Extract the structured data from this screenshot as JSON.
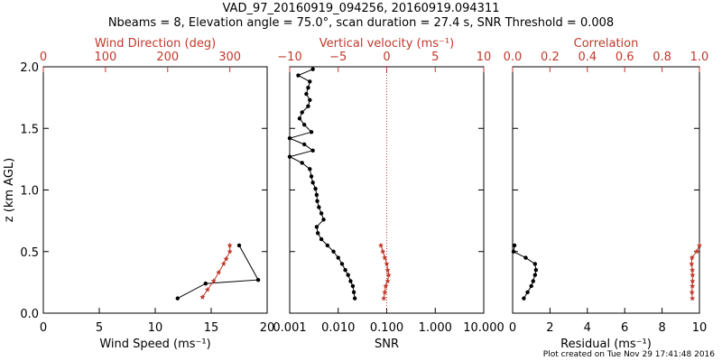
{
  "title_line1": "VAD_97_20160919_094256, 20160919.094311",
  "title_line2": "Nbeams = 8, Elevation angle = 75.0°, scan duration = 27.4 s, SNR Threshold = 0.008",
  "footer": "Plot created on Tue Nov 29 17:41:48 2016",
  "colors": {
    "primary": "#000000",
    "secondary": "#c0392b"
  },
  "chart_data": [
    {
      "type": "line",
      "ylabel": "z (km AGL)",
      "ylim": [
        0,
        2
      ],
      "yticks": [
        "0.0",
        "0.5",
        "1.0",
        "1.5",
        "2.0"
      ],
      "bottom_axis": {
        "label": "Wind Speed (ms⁻¹)",
        "range": [
          0,
          20
        ],
        "ticks": [
          "0",
          "5",
          "10",
          "15",
          "20"
        ],
        "scale": "linear"
      },
      "top_axis": {
        "label": "Wind Direction (deg)",
        "range": [
          0,
          360
        ],
        "ticks": [
          "0",
          "100",
          "200",
          "300"
        ],
        "scale": "linear"
      },
      "series": [
        {
          "axis": "bottom",
          "color": "#000000",
          "marker": "dot",
          "z": [
            0.12,
            0.24,
            0.27,
            0.55
          ],
          "x": [
            12.0,
            14.5,
            19.2,
            17.5
          ]
        },
        {
          "axis": "top",
          "color": "#c0392b",
          "marker": "star",
          "z": [
            0.13,
            0.19,
            0.26,
            0.33,
            0.4,
            0.44,
            0.5,
            0.55
          ],
          "x": [
            256,
            264,
            274,
            282,
            290,
            294,
            300,
            300
          ]
        }
      ]
    },
    {
      "type": "line",
      "ylim": [
        0,
        2
      ],
      "bottom_axis": {
        "label": "SNR",
        "range": [
          0.001,
          10
        ],
        "ticks": [
          "0.001",
          "0.010",
          "0.100",
          "1.000",
          "10.000"
        ],
        "tick_values": [
          0.001,
          0.01,
          0.1,
          1,
          10
        ],
        "scale": "log"
      },
      "top_axis": {
        "label": "Vertical velocity (ms⁻¹)",
        "range": [
          -10,
          10
        ],
        "ticks": [
          "−10",
          "−5",
          "0",
          "5",
          "10"
        ],
        "tick_values": [
          -10,
          -5,
          0,
          5,
          10
        ],
        "scale": "linear"
      },
      "reference_line": {
        "axis": "top",
        "value": 0,
        "style": "dotted",
        "color": "#c0392b"
      },
      "series": [
        {
          "axis": "bottom",
          "color": "#000000",
          "marker": "dot",
          "z": [
            0.12,
            0.17,
            0.22,
            0.26,
            0.31,
            0.35,
            0.4,
            0.45,
            0.5,
            0.55,
            0.6,
            0.65,
            0.7,
            0.76,
            0.81,
            0.86,
            0.91,
            0.96,
            1.01,
            1.06,
            1.11,
            1.17,
            1.22,
            1.27,
            1.32,
            1.37,
            1.42,
            1.47,
            1.53,
            1.58,
            1.63,
            1.68,
            1.73,
            1.78,
            1.83,
            1.88,
            1.93,
            1.98
          ],
          "x": [
            0.022,
            0.021,
            0.02,
            0.018,
            0.016,
            0.014,
            0.012,
            0.01,
            0.008,
            0.006,
            0.0045,
            0.0038,
            0.0036,
            0.005,
            0.0045,
            0.004,
            0.0037,
            0.0036,
            0.0034,
            0.003,
            0.0028,
            0.0026,
            0.0018,
            0.001,
            0.003,
            0.002,
            0.001,
            0.0028,
            0.002,
            0.0016,
            0.0018,
            0.0024,
            0.0026,
            0.0022,
            0.0024,
            0.0026,
            0.0015,
            0.003
          ]
        },
        {
          "axis": "top",
          "color": "#c0392b",
          "marker": "star",
          "z": [
            0.12,
            0.17,
            0.22,
            0.26,
            0.31,
            0.35,
            0.4,
            0.45,
            0.5,
            0.55
          ],
          "x": [
            -0.3,
            -0.2,
            -0.1,
            0.1,
            0.2,
            0.1,
            0.0,
            -0.2,
            -0.4,
            -0.6
          ]
        }
      ]
    },
    {
      "type": "line",
      "ylim": [
        0,
        2
      ],
      "bottom_axis": {
        "label": "Residual (ms⁻¹)",
        "range": [
          0,
          10
        ],
        "ticks": [
          "0",
          "2",
          "4",
          "6",
          "8",
          "10"
        ],
        "scale": "linear"
      },
      "top_axis": {
        "label": "Correlation",
        "range": [
          0,
          1
        ],
        "ticks": [
          "0.0",
          "0.2",
          "0.4",
          "0.6",
          "0.8",
          "1.0"
        ],
        "scale": "linear"
      },
      "series": [
        {
          "axis": "bottom",
          "color": "#000000",
          "marker": "dot",
          "z": [
            0.12,
            0.17,
            0.22,
            0.26,
            0.31,
            0.35,
            0.4,
            0.45,
            0.5,
            0.55
          ],
          "x": [
            0.6,
            0.8,
            1.0,
            1.1,
            1.2,
            1.25,
            1.2,
            0.7,
            0.05,
            0.1
          ]
        },
        {
          "axis": "top",
          "color": "#c0392b",
          "marker": "star",
          "z": [
            0.12,
            0.17,
            0.22,
            0.26,
            0.31,
            0.35,
            0.4,
            0.45,
            0.5,
            0.55
          ],
          "x": [
            0.962,
            0.96,
            0.962,
            0.963,
            0.963,
            0.962,
            0.958,
            0.96,
            0.985,
            1.0
          ]
        }
      ]
    }
  ]
}
